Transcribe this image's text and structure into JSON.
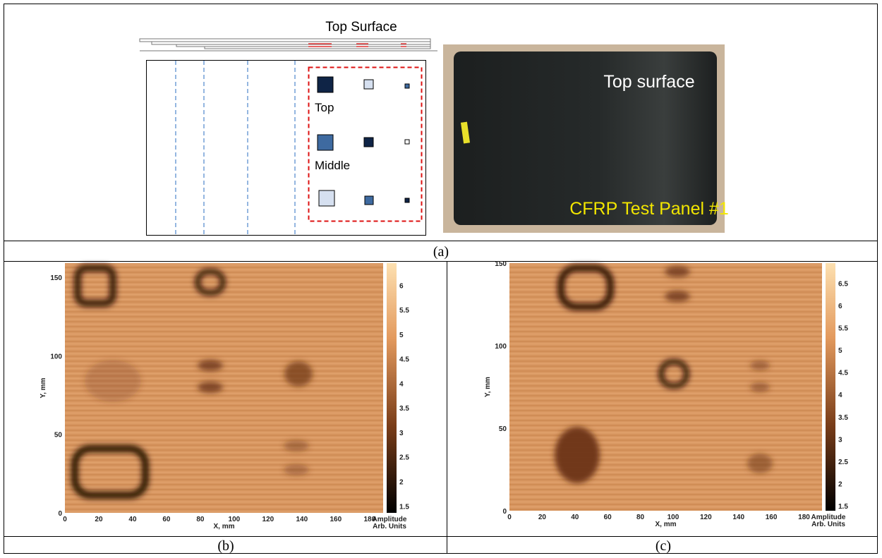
{
  "panel_a": {
    "schematic_title": "Top Surface",
    "labels": [
      "Top",
      "Middle"
    ],
    "photo_title": "Top surface",
    "photo_caption": "CFRP Test Panel #1",
    "caption": "(a)"
  },
  "panel_b": {
    "xlabel": "X, mm",
    "ylabel": "Y, mm",
    "colorbar_label": [
      "Amplitude",
      "Arb. Units"
    ],
    "xlim": [
      0,
      188
    ],
    "ylim": [
      0,
      159
    ],
    "clim": [
      1.36,
      6.45
    ],
    "xticks": [
      0,
      20,
      40,
      60,
      80,
      100,
      120,
      140,
      160,
      180
    ],
    "yticks": [
      0,
      50,
      100,
      150
    ],
    "colorbar_ticks": [
      1.5,
      2,
      2.5,
      3,
      3.5,
      4,
      4.5,
      5,
      5.5,
      6
    ],
    "caption": "(b)"
  },
  "panel_c": {
    "xlabel": "X, mm",
    "ylabel": "Y, mm",
    "colorbar_label": [
      "Amplitude",
      "Arb. Units"
    ],
    "xlim": [
      0,
      191
    ],
    "ylim": [
      0,
      150
    ],
    "clim": [
      1.39,
      6.95
    ],
    "xticks": [
      0,
      20,
      40,
      60,
      80,
      100,
      120,
      140,
      160,
      180
    ],
    "yticks": [
      0,
      50,
      100,
      150
    ],
    "colorbar_ticks": [
      1.5,
      2,
      2.5,
      3,
      3.5,
      4,
      4.5,
      5,
      5.5,
      6,
      6.5
    ],
    "caption": "(c)"
  }
}
